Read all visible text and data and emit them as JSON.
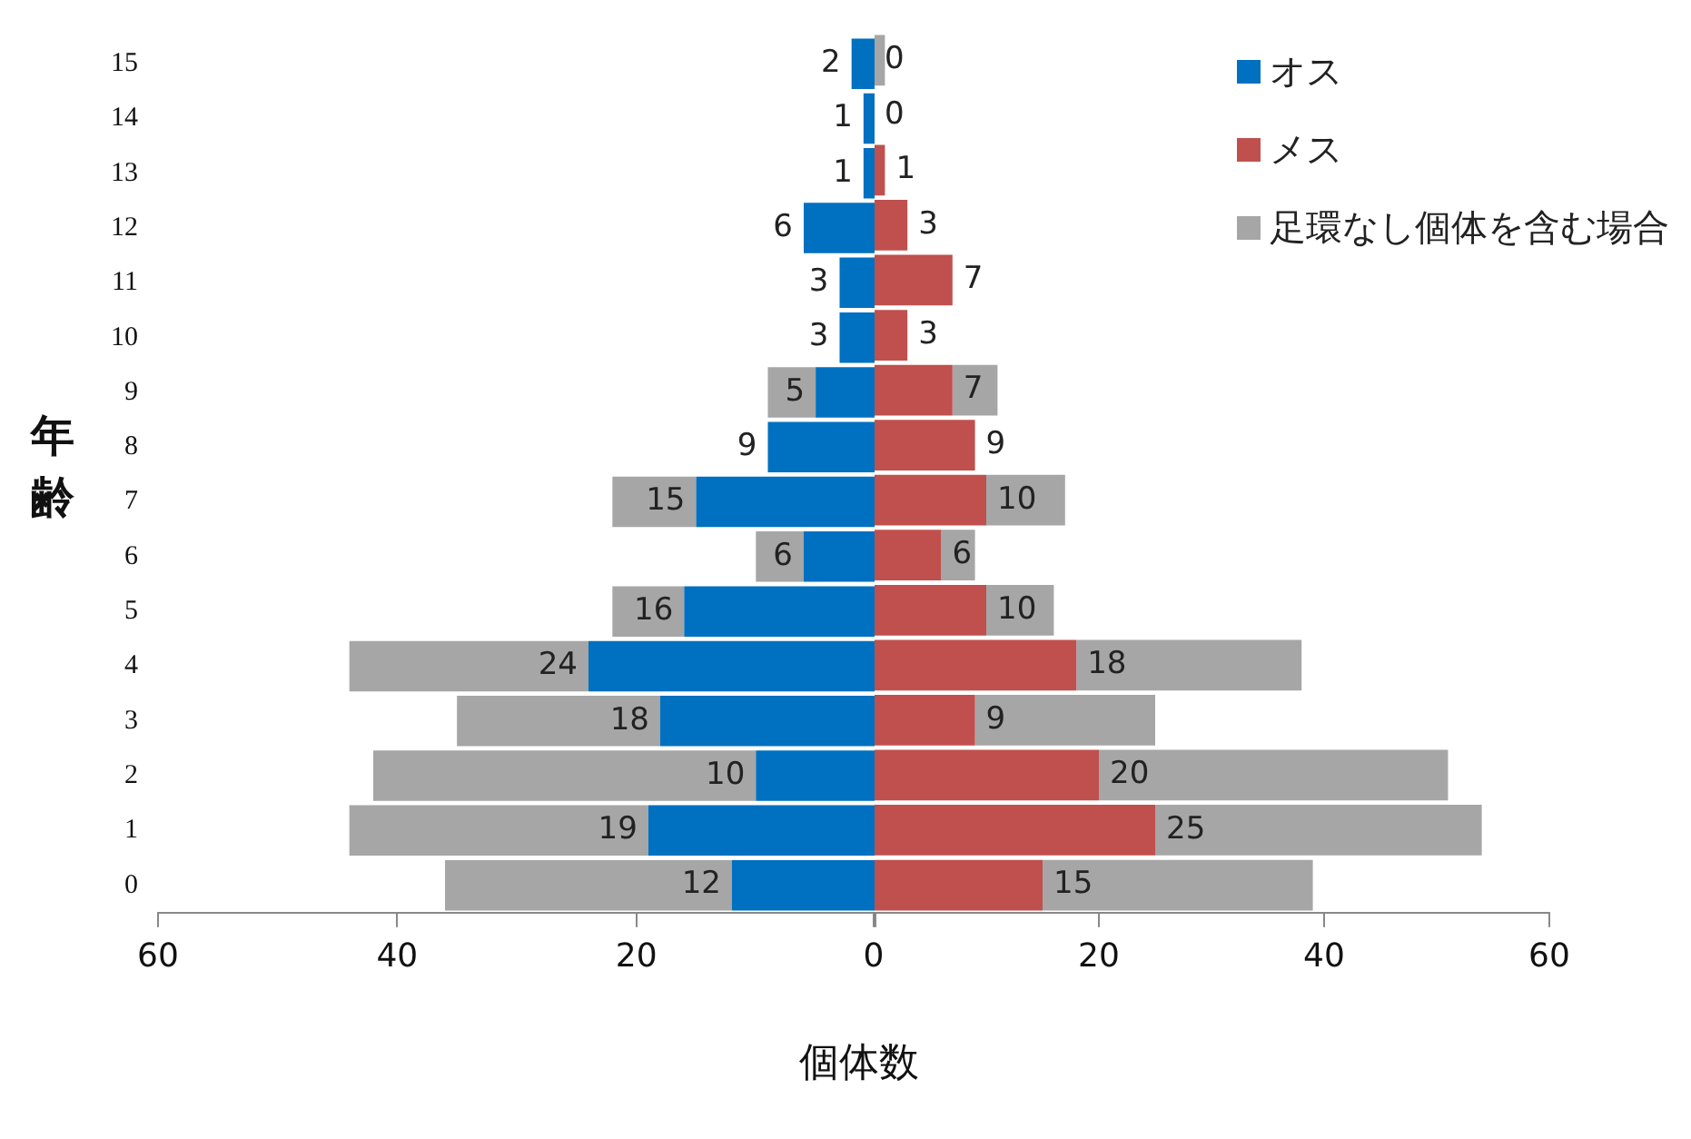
{
  "chart_data": [
    {
      "type": "bar",
      "orientation": "horizontal",
      "stacked": true,
      "ylabel": "年齢",
      "categories": [
        "15",
        "14",
        "13",
        "12",
        "11",
        "10",
        "9",
        "8",
        "7",
        "6",
        "5",
        "4",
        "3",
        "2",
        "1",
        "0"
      ],
      "xlim": [
        60,
        0
      ],
      "xticks": [
        60,
        40,
        20,
        {
          "value": 0,
          "label": null
        }
      ],
      "legend": "top right",
      "grid": false,
      "series": [
        {
          "name": "オス",
          "color": "#0070c0",
          "values": [
            2,
            1,
            1,
            6,
            3,
            3,
            5,
            9,
            15,
            6,
            16,
            24,
            18,
            10,
            19,
            12
          ],
          "value_labels": [
            "2",
            "1",
            "1",
            "6",
            "3",
            "3",
            "5",
            "9",
            "15",
            "6",
            "16",
            "24",
            "18",
            "10",
            "19",
            "12"
          ]
        },
        {
          "name": "足環なし個体を含む場合",
          "color": "#a6a6a6",
          "values": [
            0,
            0,
            0,
            0,
            0,
            0,
            4,
            0,
            7,
            4,
            6,
            20,
            17,
            32,
            25,
            24
          ]
        }
      ]
    },
    {
      "type": "bar",
      "orientation": "horizontal",
      "stacked": true,
      "xlabel": "個体数",
      "categories": [
        "15",
        "14",
        "13",
        "12",
        "11",
        "10",
        "9",
        "8",
        "7",
        "6",
        "5",
        "4",
        "3",
        "2",
        "1",
        "0"
      ],
      "xlim": [
        0,
        60
      ],
      "xticks": [
        0,
        20,
        40,
        60
      ],
      "tick_labels": "x",
      "legend": "top right",
      "grid": false,
      "series": [
        {
          "name": "メス",
          "color": "#c0504d",
          "values": [
            0,
            0,
            1,
            3,
            7,
            3,
            7,
            9,
            10,
            6,
            10,
            18,
            9,
            20,
            25,
            15
          ],
          "value_labels": [
            "0",
            "0",
            "1",
            "3",
            "7",
            "3",
            "7",
            "9",
            "10",
            "6",
            "10",
            "18",
            "9",
            "20",
            "25",
            "15"
          ]
        },
        {
          "color": "#a6a6a6",
          "values": [
            1,
            0,
            0,
            0,
            0,
            0,
            4,
            0,
            7,
            3,
            6,
            20,
            16,
            31,
            29,
            24
          ]
        }
      ]
    }
  ]
}
